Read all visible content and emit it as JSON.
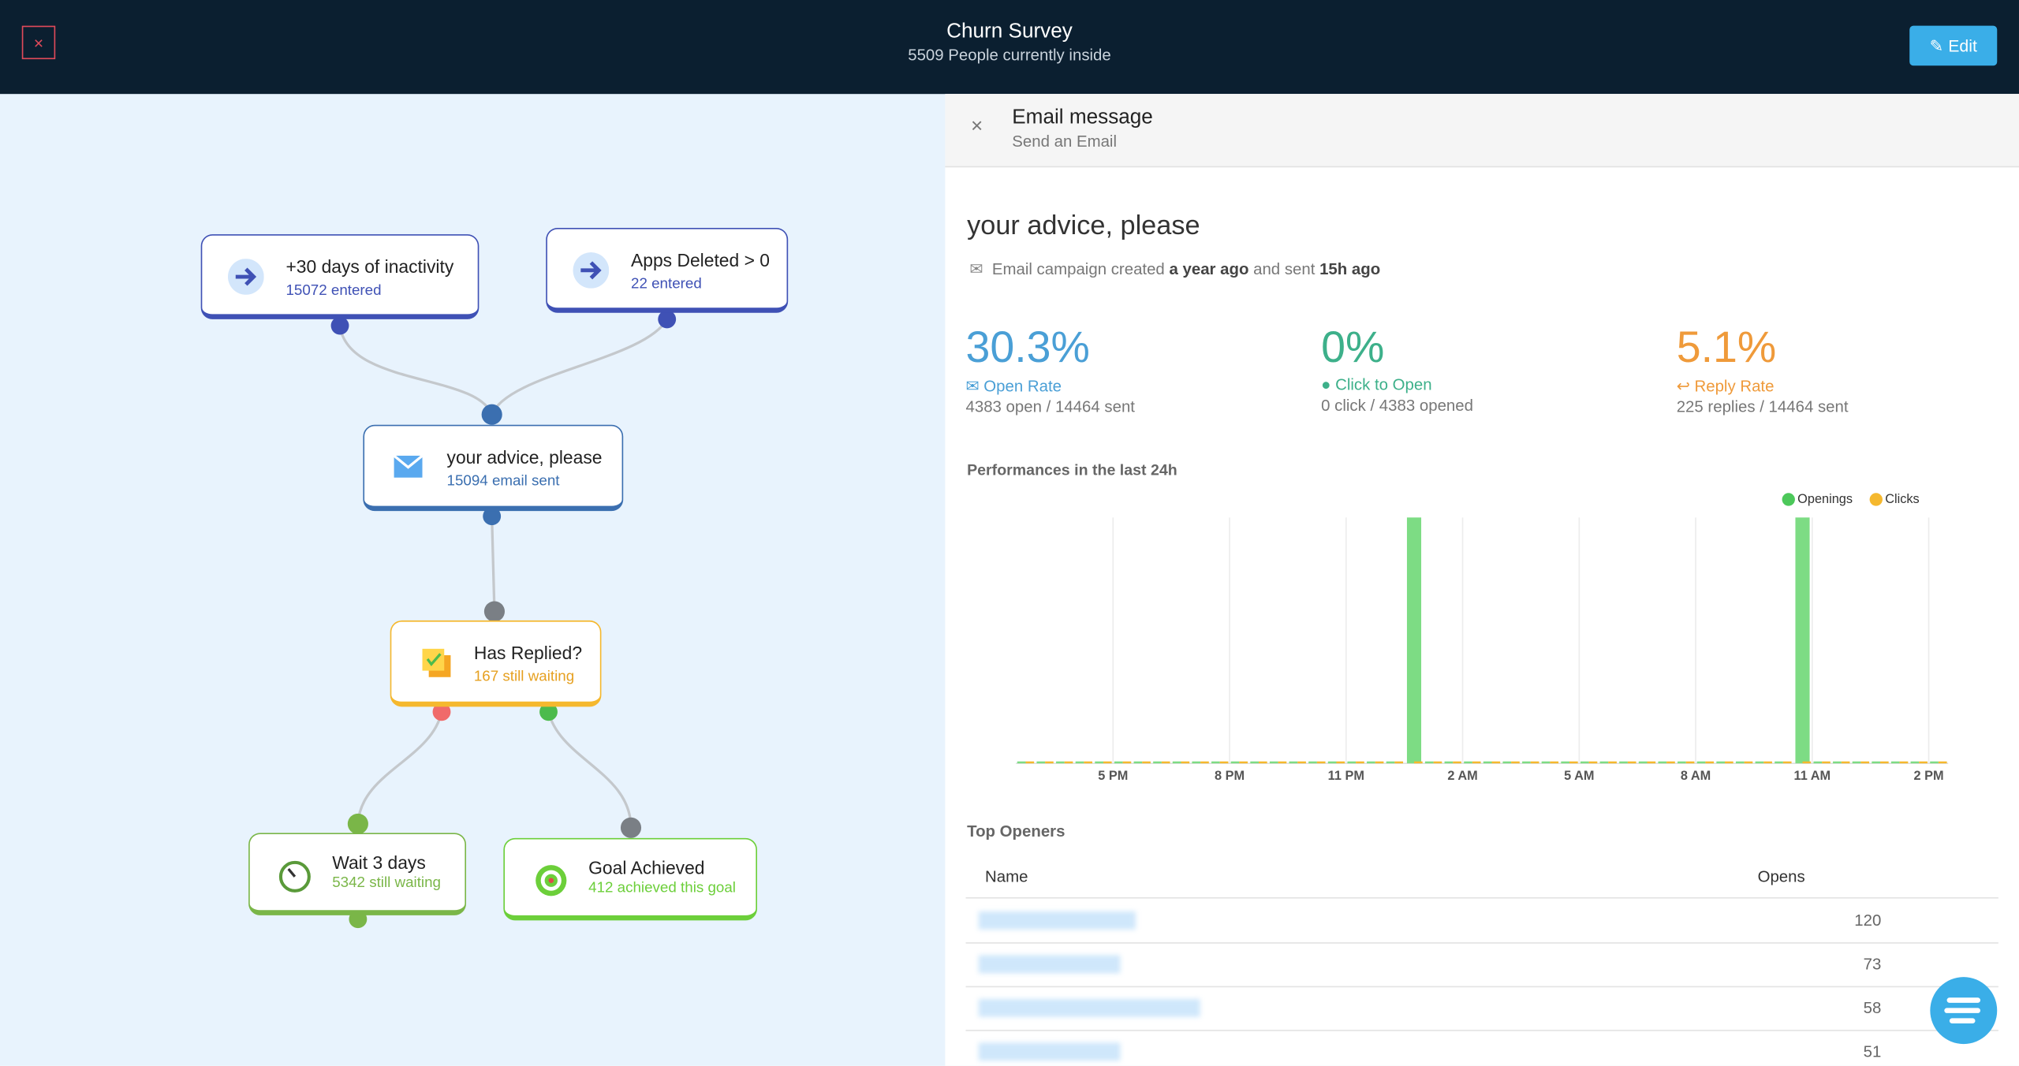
{
  "header": {
    "title": "Churn Survey",
    "subtitle": "5509 People currently inside",
    "close": "×",
    "edit": "Edit"
  },
  "nodes": [
    {
      "title": "+30 days of inactivity",
      "subtitle": "15072 entered"
    },
    {
      "title": "Apps Deleted > 0",
      "subtitle": "22 entered"
    },
    {
      "title": "your advice, please",
      "subtitle": "15094 email sent"
    },
    {
      "title": "Has Replied?",
      "subtitle": "167 still waiting"
    },
    {
      "title": "Wait 3 days",
      "subtitle": "5342 still waiting"
    },
    {
      "title": "Goal Achieved",
      "subtitle": "412 achieved this goal"
    }
  ],
  "panel": {
    "close": "×",
    "title": "Email message",
    "subtitle": "Send an Email",
    "campaign": "your advice, please",
    "meta": [
      "Email campaign created ",
      "a year ago",
      " and sent ",
      "15h ago"
    ],
    "stats": [
      {
        "value": "30.3%",
        "label": "Open Rate",
        "detail": "4383 open / 14464 sent"
      },
      {
        "value": "0%",
        "label": "Click to Open",
        "detail": "0 click / 4383 opened"
      },
      {
        "value": "5.1%",
        "label": "Reply Rate",
        "detail": "225 replies / 14464 sent"
      }
    ]
  },
  "chart_data": {
    "type": "bar",
    "title": "Performances in the last 24h",
    "legend": "top-right",
    "tick_labels": [
      "5 PM",
      "8 PM",
      "11 PM",
      "2 AM",
      "5 AM",
      "8 AM",
      "11 AM",
      "2 PM"
    ],
    "series": [
      {
        "name": "Openings",
        "color": "#7ddc84",
        "values": [
          0,
          0,
          0,
          0,
          0,
          0,
          0,
          0,
          0,
          0,
          0,
          0,
          0,
          0,
          0,
          0,
          0,
          0,
          0,
          0,
          1,
          0,
          0,
          0,
          0,
          0,
          0,
          0,
          0,
          0,
          0,
          0,
          0,
          0,
          0,
          0,
          0,
          0,
          0,
          0,
          1,
          0,
          0,
          0,
          0,
          0,
          0,
          0
        ]
      },
      {
        "name": "Clicks",
        "color": "#f5b82e",
        "values": [
          0,
          0,
          0,
          0,
          0,
          0,
          0,
          0,
          0,
          0,
          0,
          0,
          0,
          0,
          0,
          0,
          0,
          0,
          0,
          0,
          0,
          0,
          0,
          0,
          0,
          0,
          0,
          0,
          0,
          0,
          0,
          0,
          0,
          0,
          0,
          0,
          0,
          0,
          0,
          0,
          0,
          0,
          0,
          0,
          0,
          0,
          0,
          0
        ]
      }
    ]
  },
  "table": {
    "title": "Top Openers",
    "columns": [
      "Name",
      "Opens"
    ],
    "opens": [
      120,
      73,
      58,
      51
    ]
  }
}
